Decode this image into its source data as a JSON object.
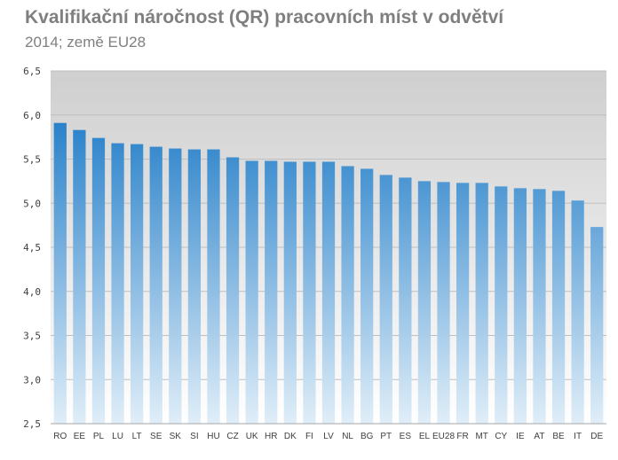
{
  "title": "Kvalifikační náročnost (QR)  pracovních míst v odvětví",
  "subtitle": "2014; země EU28",
  "colors": {
    "bar_top": "#0a6fc2",
    "bar_bottom": "#e0eef8",
    "plot_bg_top": "#cfcfcf",
    "plot_bg_bottom": "#ffffff",
    "grid": "#bfbfbf"
  },
  "chart_data": {
    "type": "bar",
    "categories": [
      "RO",
      "EE",
      "PL",
      "LU",
      "LT",
      "SE",
      "SK",
      "SI",
      "HU",
      "CZ",
      "UK",
      "HR",
      "DK",
      "FI",
      "LV",
      "NL",
      "BG",
      "PT",
      "ES",
      "EL",
      "EU28",
      "FR",
      "MT",
      "CY",
      "IE",
      "AT",
      "BE",
      "IT",
      "DE"
    ],
    "values": [
      5.91,
      5.83,
      5.74,
      5.68,
      5.67,
      5.64,
      5.62,
      5.61,
      5.61,
      5.52,
      5.48,
      5.48,
      5.47,
      5.47,
      5.47,
      5.42,
      5.39,
      5.32,
      5.29,
      5.25,
      5.24,
      5.23,
      5.23,
      5.19,
      5.17,
      5.16,
      5.14,
      5.03,
      4.73
    ],
    "ylim": [
      2.5,
      6.5
    ],
    "yticks": [
      "2,5",
      "3,0",
      "3,5",
      "4,0",
      "4,5",
      "5,0",
      "5,5",
      "6,0",
      "6,5"
    ],
    "grid": true,
    "legend": "none"
  }
}
